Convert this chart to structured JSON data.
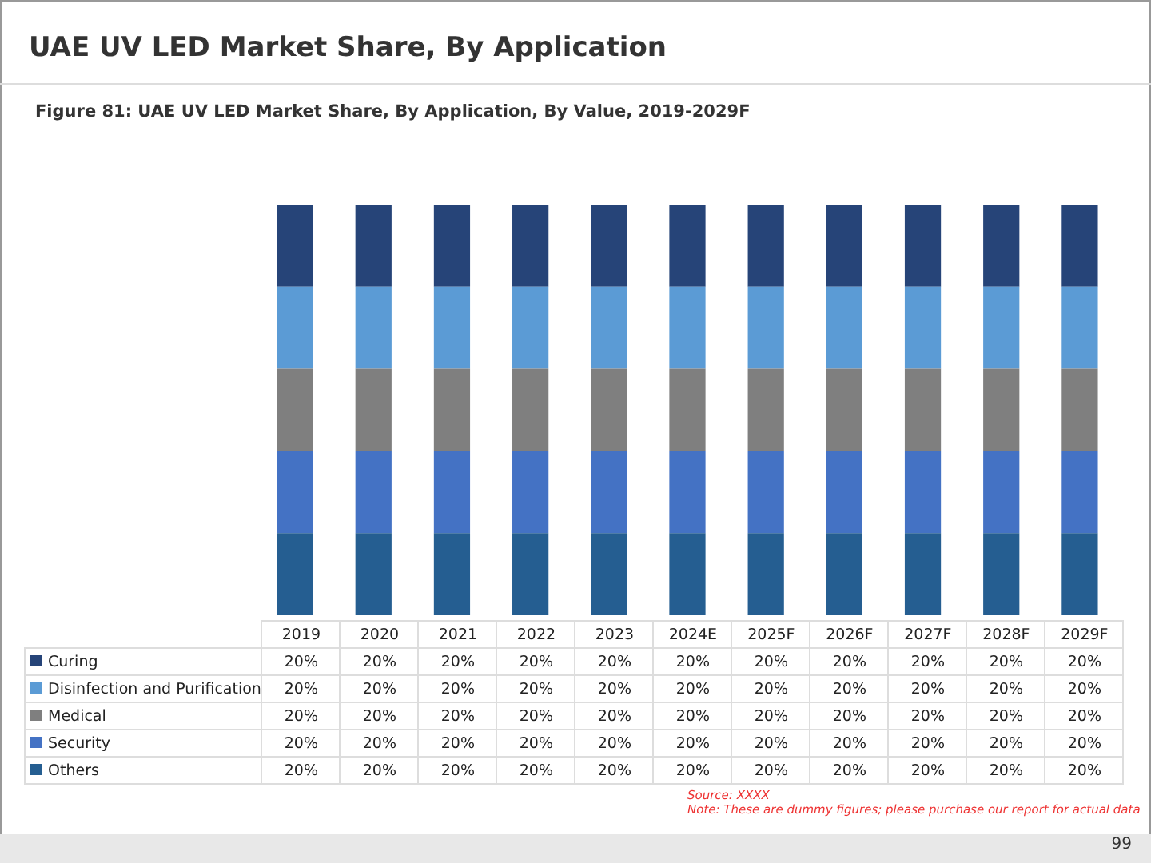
{
  "chart_data": {
    "type": "bar",
    "title": "UAE UV LED Market Share, By Application",
    "subtitle": "Figure 81: UAE UV LED Market Share, By Application, By Value, 2019-2029F",
    "categories": [
      "2019",
      "2020",
      "2021",
      "2022",
      "2023",
      "2024E",
      "2025F",
      "2026F",
      "2027F",
      "2028F",
      "2029F"
    ],
    "stacked": true,
    "legend": "left",
    "series": [
      {
        "name": "Others",
        "color": "#255e91",
        "values": [
          20,
          20,
          20,
          20,
          20,
          20,
          20,
          20,
          20,
          20,
          20
        ],
        "value_labels": [
          "20%",
          "20%",
          "20%",
          "20%",
          "20%",
          "20%",
          "20%",
          "20%",
          "20%",
          "20%",
          "20%"
        ]
      },
      {
        "name": "Security",
        "color": "#4472c4",
        "values": [
          20,
          20,
          20,
          20,
          20,
          20,
          20,
          20,
          20,
          20,
          20
        ],
        "value_labels": [
          "20%",
          "20%",
          "20%",
          "20%",
          "20%",
          "20%",
          "20%",
          "20%",
          "20%",
          "20%",
          "20%"
        ]
      },
      {
        "name": "Medical",
        "color": "#7f7f7f",
        "values": [
          20,
          20,
          20,
          20,
          20,
          20,
          20,
          20,
          20,
          20,
          20
        ],
        "value_labels": [
          "20%",
          "20%",
          "20%",
          "20%",
          "20%",
          "20%",
          "20%",
          "20%",
          "20%",
          "20%",
          "20%"
        ]
      },
      {
        "name": "Disinfection and Purification",
        "color": "#5b9bd5",
        "values": [
          20,
          20,
          20,
          20,
          20,
          20,
          20,
          20,
          20,
          20,
          20
        ],
        "value_labels": [
          "20%",
          "20%",
          "20%",
          "20%",
          "20%",
          "20%",
          "20%",
          "20%",
          "20%",
          "20%",
          "20%"
        ]
      },
      {
        "name": "Curing",
        "color": "#264478",
        "values": [
          20,
          20,
          20,
          20,
          20,
          20,
          20,
          20,
          20,
          20,
          20
        ],
        "value_labels": [
          "20%",
          "20%",
          "20%",
          "20%",
          "20%",
          "20%",
          "20%",
          "20%",
          "20%",
          "20%",
          "20%"
        ]
      }
    ],
    "annotations": [
      "Source: XXXX",
      "Note: These are dummy figures; please purchase our report for actual data",
      "99"
    ]
  }
}
